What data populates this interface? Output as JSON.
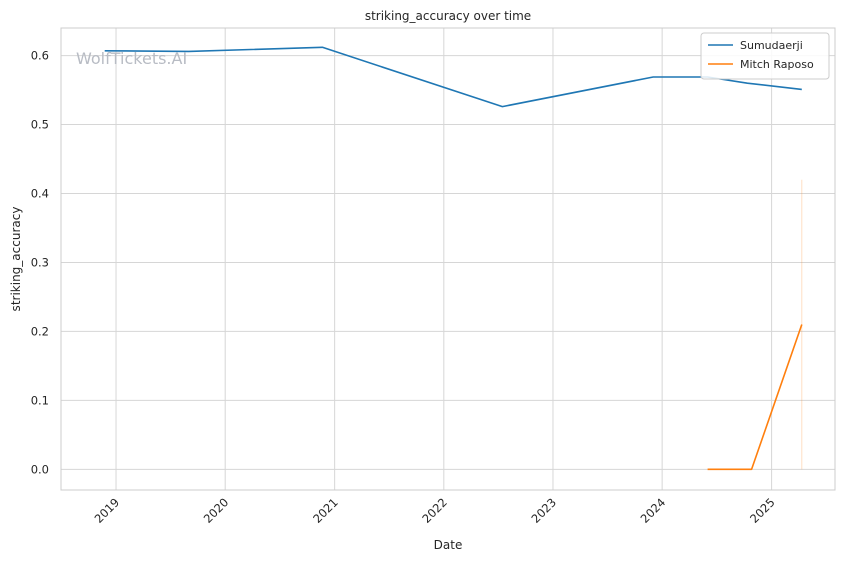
{
  "chart_data": {
    "type": "line",
    "title": "striking_accuracy over time",
    "xlabel": "Date",
    "ylabel": "striking_accuracy",
    "watermark": "WolfTickets.AI",
    "x_axis_type": "date",
    "xlim": [
      "2018-07-01",
      "2025-08-01"
    ],
    "ylim": [
      -0.03,
      0.64
    ],
    "x_ticks": [
      "2019-01-01",
      "2020-01-01",
      "2021-01-01",
      "2022-01-01",
      "2023-01-01",
      "2024-01-01",
      "2025-01-01"
    ],
    "x_tick_labels": [
      "2019",
      "2020",
      "2021",
      "2022",
      "2023",
      "2024",
      "2025"
    ],
    "y_ticks": [
      0.0,
      0.1,
      0.2,
      0.3,
      0.4,
      0.5,
      0.6
    ],
    "y_tick_labels": [
      "0.0",
      "0.1",
      "0.2",
      "0.3",
      "0.4",
      "0.5",
      "0.6"
    ],
    "grid": true,
    "legend_position": "top-right",
    "series": [
      {
        "name": "Sumudaerji",
        "color": "#1f77b4",
        "points": [
          {
            "x": "2018-11-24",
            "y": 0.607
          },
          {
            "x": "2019-09-01",
            "y": 0.606
          },
          {
            "x": "2020-11-21",
            "y": 0.612
          },
          {
            "x": "2022-07-16",
            "y": 0.526
          },
          {
            "x": "2023-12-02",
            "y": 0.569
          },
          {
            "x": "2024-06-01",
            "y": 0.569
          },
          {
            "x": "2024-10-12",
            "y": 0.56
          },
          {
            "x": "2025-04-12",
            "y": 0.551
          }
        ]
      },
      {
        "name": "Mitch Raposo",
        "color": "#ff7f0e",
        "points": [
          {
            "x": "2024-06-01",
            "y": 0.0
          },
          {
            "x": "2024-10-26",
            "y": 0.0
          },
          {
            "x": "2025-04-12",
            "y": 0.21
          }
        ],
        "error_band": {
          "x": "2025-04-12",
          "y_low": 0.0,
          "y_high": 0.42
        }
      }
    ]
  }
}
